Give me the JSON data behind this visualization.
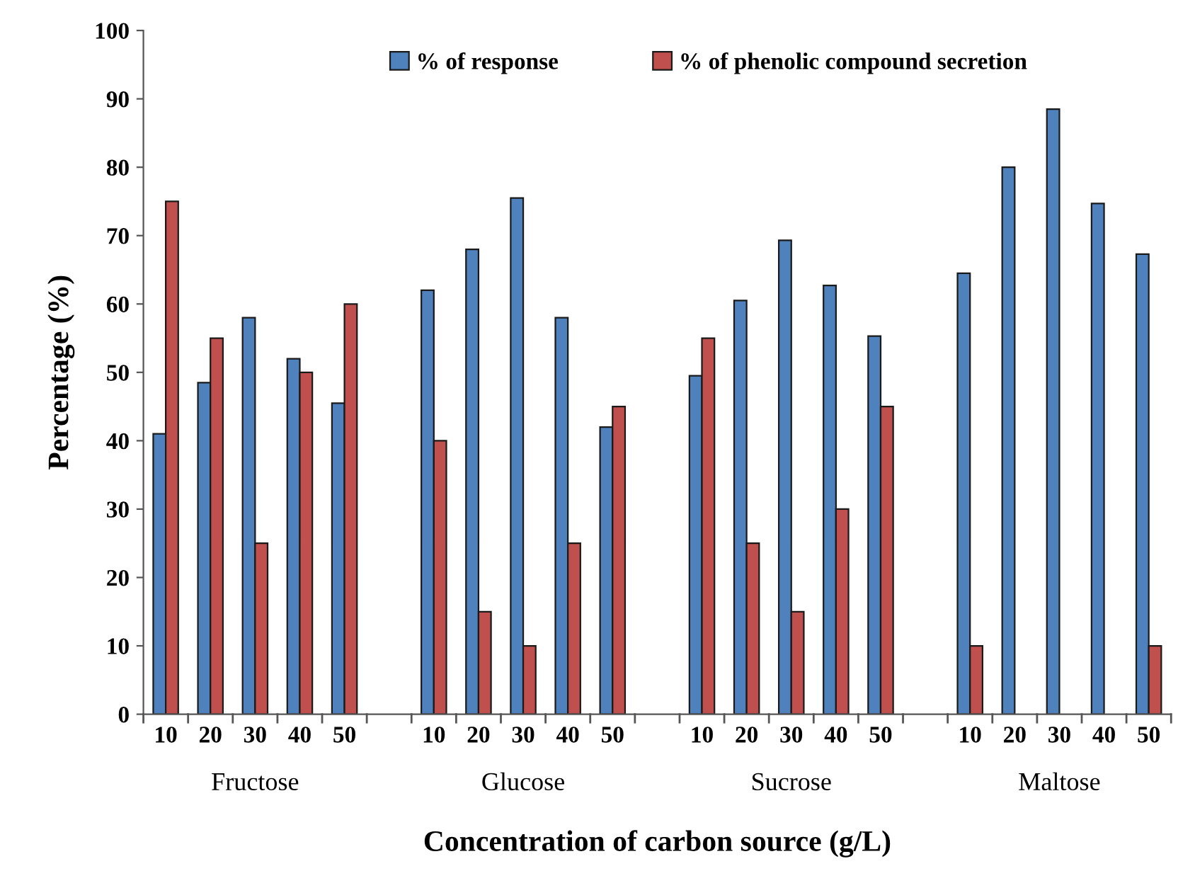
{
  "chart_data": {
    "type": "bar",
    "xlabel": "Concentration of carbon source (g/L)",
    "ylabel": "Percentage (%)",
    "categories": [
      "10",
      "20",
      "30",
      "40",
      "50",
      null,
      "10",
      "20",
      "30",
      "40",
      "50",
      null,
      "10",
      "20",
      "30",
      "40",
      "50",
      null,
      "10",
      "20",
      "30",
      "40",
      "50"
    ],
    "series": [
      {
        "name": "% of response",
        "color": "#4f81bd",
        "values": [
          41,
          48.5,
          58,
          52,
          45.5,
          null,
          62,
          68,
          75.5,
          58,
          42,
          null,
          49.5,
          60.5,
          69.3,
          62.7,
          55.3,
          null,
          64.5,
          80,
          88.5,
          74.7,
          67.3
        ]
      },
      {
        "name": "% of phenolic compound secretion",
        "color": "#c0504d",
        "values": [
          75,
          55,
          25,
          50,
          60,
          null,
          40,
          15,
          10,
          25,
          45,
          null,
          55,
          25,
          15,
          30,
          45,
          null,
          10,
          null,
          null,
          null,
          10
        ]
      }
    ],
    "annotations": [
      "Fructose",
      "Glucose",
      "Sucrose",
      "Maltose"
    ],
    "ylim": [
      0,
      100
    ],
    "yticks": [
      0,
      10,
      20,
      30,
      40,
      50,
      60,
      70,
      80,
      90,
      100
    ],
    "grid": false,
    "legend": "top"
  }
}
